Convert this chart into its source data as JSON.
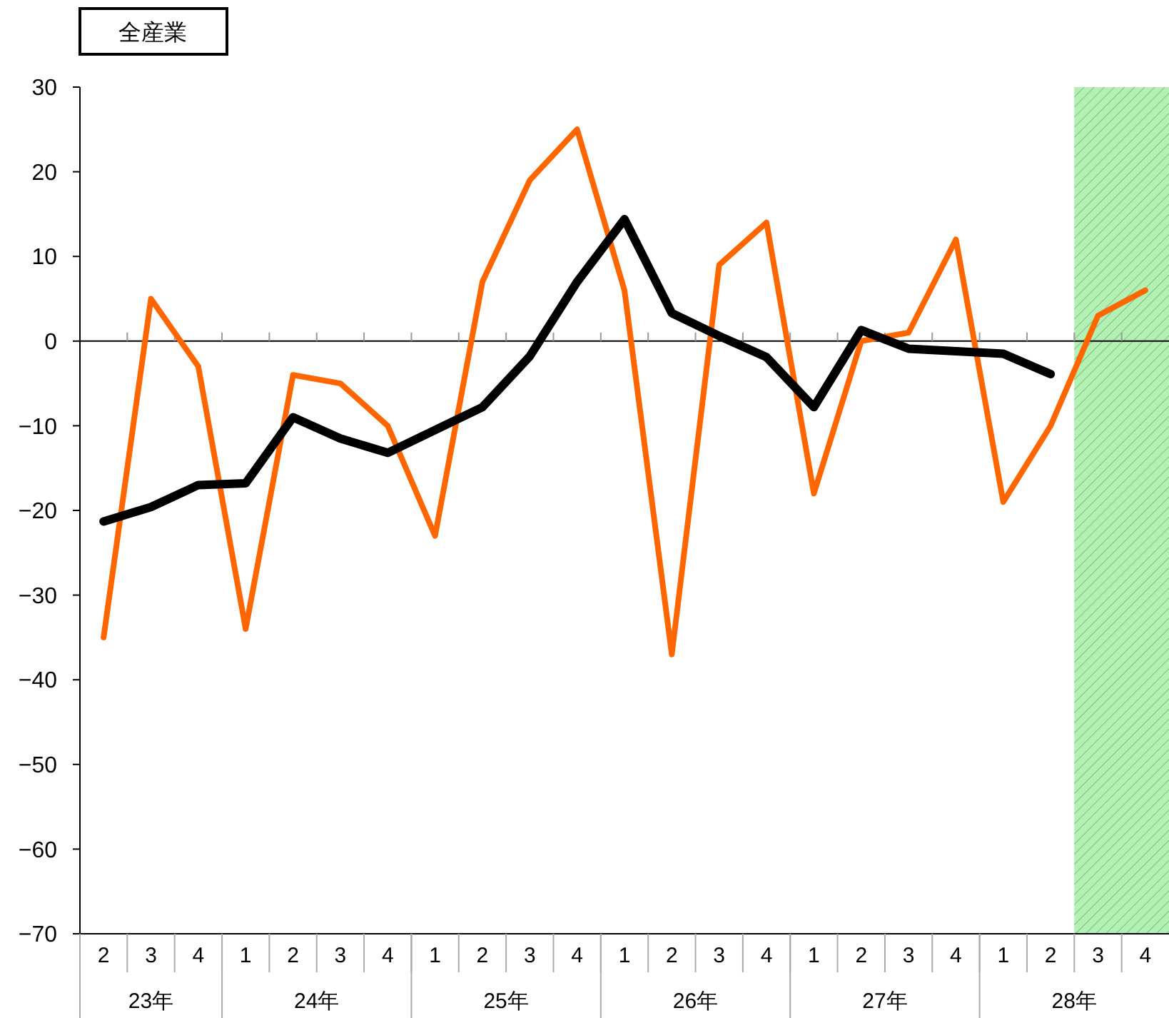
{
  "chart_data": {
    "type": "line",
    "title": "全産業",
    "categories": [
      "2",
      "3",
      "4",
      "1",
      "2",
      "3",
      "4",
      "1",
      "2",
      "3",
      "4",
      "1",
      "2",
      "3",
      "4",
      "1",
      "2",
      "3",
      "4",
      "1",
      "2",
      "3",
      "4"
    ],
    "series": [
      {
        "color": "#ff6600",
        "values": [
          -35,
          5,
          -3,
          -34,
          -4,
          -5,
          -10,
          -23,
          7,
          19,
          25,
          6,
          -37,
          9,
          14,
          -18,
          0,
          1,
          12,
          -19,
          -10,
          3,
          6
        ]
      },
      {
        "color": "#000000",
        "values": [
          -21.3,
          -19.6,
          -17,
          -16.8,
          -9,
          -11.5,
          -13.2,
          -10.5,
          -7.8,
          -1.8,
          7,
          14.4,
          3.3,
          0.6,
          -1.9,
          -7.8,
          1.3,
          -0.9,
          -1.2,
          -1.5,
          -3.9,
          null,
          null
        ]
      }
    ],
    "ylim": [
      -70,
      30
    ],
    "yticks": [
      -70,
      -60,
      -50,
      -40,
      -30,
      -20,
      -10,
      0,
      10,
      20,
      30
    ],
    "ref_lines": [
      {
        "axis": "y",
        "value": 0
      }
    ],
    "annotations": [
      "23年",
      "24年",
      "25年",
      "26年",
      "27年",
      "28年"
    ],
    "grid": false,
    "marker": "none",
    "line_style": "solid"
  }
}
